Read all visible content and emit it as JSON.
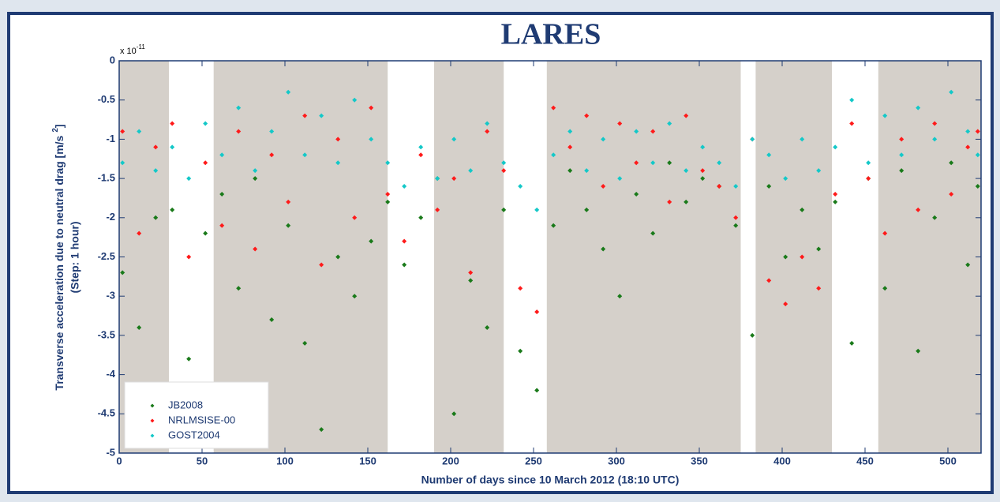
{
  "chart_data": {
    "type": "scatter",
    "title": "LARES",
    "xlabel": "Number of days since 10 March 2012 (18:10 UTC)",
    "ylabel": [
      "Transverse acceleration due to neutral drag [m/s",
      "2",
      "]"
    ],
    "ylabel2": "(Step: 1 hour)",
    "y_multiplier": [
      "x 10",
      "-11"
    ],
    "xlim": [
      0,
      520
    ],
    "ylim": [
      -5,
      0
    ],
    "xticks": [
      0,
      50,
      100,
      150,
      200,
      250,
      300,
      350,
      400,
      450,
      500
    ],
    "yticks": [
      0,
      -0.5,
      -1,
      -1.5,
      -2,
      -2.5,
      -3,
      -3.5,
      -4,
      -4.5,
      -5
    ],
    "shaded": [
      [
        0,
        30
      ],
      [
        57,
        162
      ],
      [
        190,
        232
      ],
      [
        258,
        375
      ],
      [
        384,
        430
      ],
      [
        458,
        520
      ]
    ],
    "shade_color": "#d5d0ca",
    "legend": "lower left",
    "series": [
      {
        "name": "JB2008",
        "color": "#1a7a1a",
        "x": [
          2,
          12,
          22,
          32,
          42,
          52,
          62,
          72,
          82,
          92,
          102,
          112,
          122,
          132,
          142,
          152,
          162,
          172,
          182,
          192,
          202,
          212,
          222,
          232,
          242,
          252,
          262,
          272,
          282,
          292,
          302,
          312,
          322,
          332,
          342,
          352,
          362,
          372,
          382,
          392,
          402,
          412,
          422,
          432,
          442,
          452,
          462,
          472,
          482,
          492,
          502,
          512,
          518
        ],
        "values": [
          -2.7,
          -3.4,
          -2.0,
          -1.9,
          -3.8,
          -2.2,
          -1.7,
          -2.9,
          -1.5,
          -3.3,
          -2.1,
          -3.6,
          -4.7,
          -2.5,
          -3.0,
          -2.3,
          -1.8,
          -2.6,
          -2.0,
          -1.5,
          -4.5,
          -2.8,
          -3.4,
          -1.9,
          -3.7,
          -4.2,
          -2.1,
          -1.4,
          -1.9,
          -2.4,
          -3.0,
          -1.7,
          -2.2,
          -1.3,
          -1.8,
          -1.5,
          -1.6,
          -2.1,
          -3.5,
          -1.6,
          -2.5,
          -1.9,
          -2.4,
          -1.8,
          -3.6,
          -1.5,
          -2.9,
          -1.4,
          -3.7,
          -2.0,
          -1.3,
          -2.6,
          -1.6
        ]
      },
      {
        "name": "NRLMSISE-00",
        "color": "#ff1a1a",
        "x": [
          2,
          12,
          22,
          32,
          42,
          52,
          62,
          72,
          82,
          92,
          102,
          112,
          122,
          132,
          142,
          152,
          162,
          172,
          182,
          192,
          202,
          212,
          222,
          232,
          242,
          252,
          262,
          272,
          282,
          292,
          302,
          312,
          322,
          332,
          342,
          352,
          362,
          372,
          382,
          392,
          402,
          412,
          422,
          432,
          442,
          452,
          462,
          472,
          482,
          492,
          502,
          512,
          518
        ],
        "values": [
          -0.9,
          -2.2,
          -1.1,
          -0.8,
          -2.5,
          -1.3,
          -2.1,
          -0.9,
          -2.4,
          -1.2,
          -1.8,
          -0.7,
          -2.6,
          -1.0,
          -2.0,
          -0.6,
          -1.7,
          -2.3,
          -1.2,
          -1.9,
          -1.5,
          -2.7,
          -0.9,
          -1.4,
          -2.9,
          -3.2,
          -0.6,
          -1.1,
          -0.7,
          -1.6,
          -0.8,
          -1.3,
          -0.9,
          -1.8,
          -0.7,
          -1.4,
          -1.6,
          -2.0,
          -1.0,
          -2.8,
          -3.1,
          -2.5,
          -2.9,
          -1.7,
          -0.8,
          -1.5,
          -2.2,
          -1.0,
          -1.9,
          -0.8,
          -1.7,
          -1.1,
          -0.9
        ]
      },
      {
        "name": "GOST2004",
        "color": "#14c8c8",
        "x": [
          2,
          12,
          22,
          32,
          42,
          52,
          62,
          72,
          82,
          92,
          102,
          112,
          122,
          132,
          142,
          152,
          162,
          172,
          182,
          192,
          202,
          212,
          222,
          232,
          242,
          252,
          262,
          272,
          282,
          292,
          302,
          312,
          322,
          332,
          342,
          352,
          362,
          372,
          382,
          392,
          402,
          412,
          422,
          432,
          442,
          452,
          462,
          472,
          482,
          492,
          502,
          512,
          518
        ],
        "values": [
          -1.3,
          -0.9,
          -1.4,
          -1.1,
          -1.5,
          -0.8,
          -1.2,
          -0.6,
          -1.4,
          -0.9,
          -0.4,
          -1.2,
          -0.7,
          -1.3,
          -0.5,
          -1.0,
          -1.3,
          -1.6,
          -1.1,
          -1.5,
          -1.0,
          -1.4,
          -0.8,
          -1.3,
          -1.6,
          -1.9,
          -1.2,
          -0.9,
          -1.4,
          -1.0,
          -1.5,
          -0.9,
          -1.3,
          -0.8,
          -1.4,
          -1.1,
          -1.3,
          -1.6,
          -1.0,
          -1.2,
          -1.5,
          -1.0,
          -1.4,
          -1.1,
          -0.5,
          -1.3,
          -0.7,
          -1.2,
          -0.6,
          -1.0,
          -0.4,
          -0.9,
          -1.2
        ]
      }
    ]
  }
}
